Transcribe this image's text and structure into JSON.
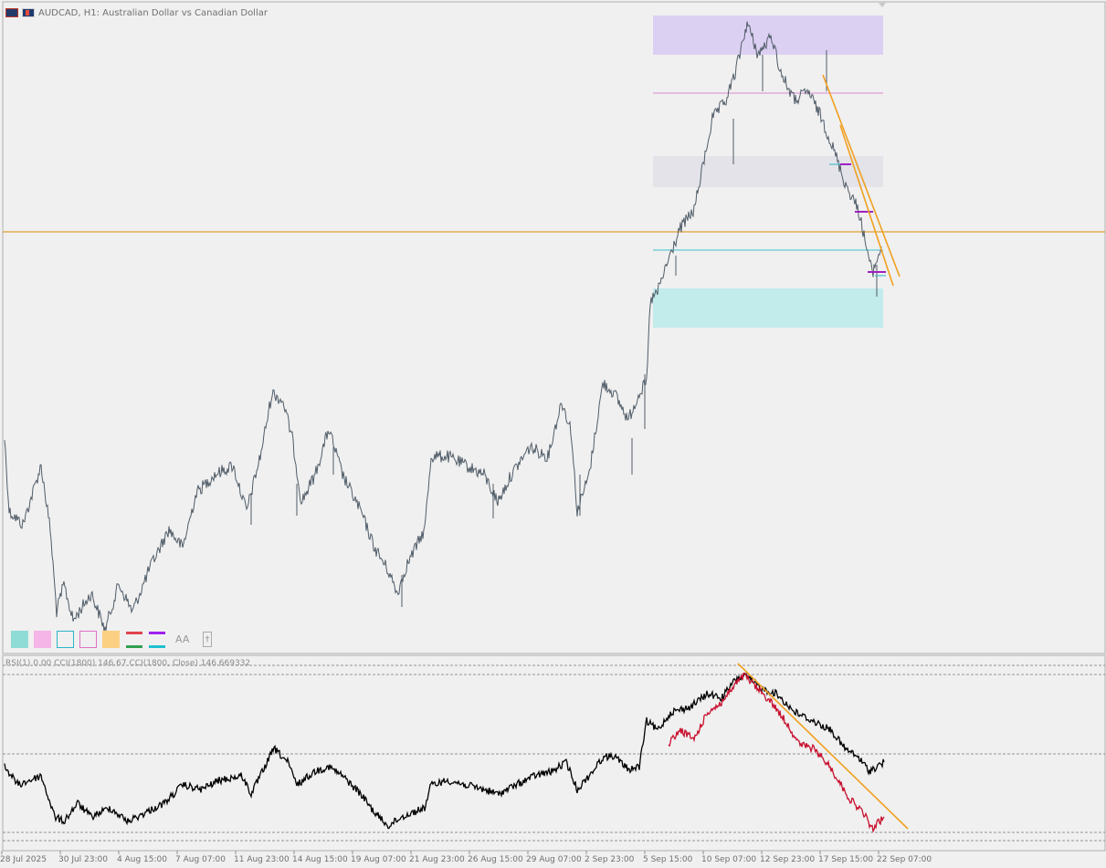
{
  "header": {
    "symbol_title": "AUDCAD, H1:  Australian Dollar vs Canadian Dollar"
  },
  "indicator": {
    "title": "RSI(1) 0.00 CCI(1800) 146.67 CCI(1800, Close) 146.669332"
  },
  "x_axis_labels": [
    "28 Jul 2025",
    "30 Jul 23:00",
    "4 Aug 15:00",
    "7 Aug 07:00",
    "11 Aug 23:00",
    "14 Aug 15:00",
    "19 Aug 07:00",
    "21 Aug 23:00",
    "26 Aug 15:00",
    "29 Aug 07:00",
    "2 Sep 23:00",
    "5 Sep 15:00",
    "10 Sep 07:00",
    "12 Sep 23:00",
    "17 Sep 15:00",
    "22 Sep 07:00"
  ],
  "colors": {
    "background": "#f0f0f0",
    "price_line": "#505c68",
    "zone_purple": "#dcd0f2",
    "zone_grey": "#e3e3e9",
    "zone_cyan": "#c2ebeb",
    "horizontal_orange": "#e0a030",
    "trendline": "#f0a020",
    "cci_black": "#000000",
    "cci_red": "#c8102e"
  },
  "toolbar": {
    "swatches": [
      {
        "name": "teal-fill",
        "color": "#8fdcd6"
      },
      {
        "name": "pink-fill",
        "color": "#f5b5e6"
      },
      {
        "name": "teal-outline",
        "color": "#2ab5c8"
      },
      {
        "name": "pink-outline",
        "color": "#e070c8"
      },
      {
        "name": "orange-fill",
        "color": "#fcd083"
      }
    ],
    "font_label": "AA"
  }
}
